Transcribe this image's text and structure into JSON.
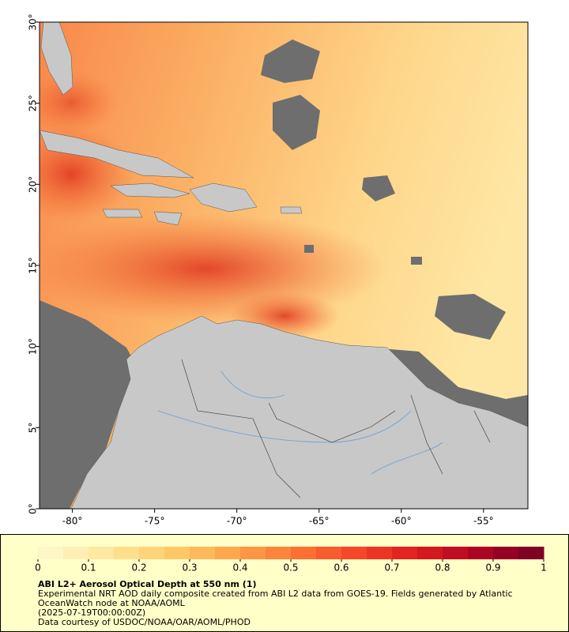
{
  "map": {
    "title": "ABI L2+ Aerosol Optical Depth at 550 nm (1)",
    "description": "Experimental NRT AOD daily composite created from ABI L2 data from GOES-19. Fields generated by Atlantic OceanWatch node at NOAA/AOML",
    "date": "(2025-07-19T00:00:00Z)",
    "credit": "Data courtesy of USDOC/NOAA/OAR/AOML/PHOD",
    "xlim": [
      -82,
      -52.3
    ],
    "ylim": [
      0,
      30
    ],
    "xticks": [
      {
        "value": -80,
        "label": "-80°"
      },
      {
        "value": -75,
        "label": "-75°"
      },
      {
        "value": -70,
        "label": "-70°"
      },
      {
        "value": -65,
        "label": "-65°"
      },
      {
        "value": -60,
        "label": "-60°"
      },
      {
        "value": -55,
        "label": "-55°"
      }
    ],
    "yticks": [
      {
        "value": 0,
        "label": "0°"
      },
      {
        "value": 5,
        "label": "5°"
      },
      {
        "value": 10,
        "label": "10°"
      },
      {
        "value": 15,
        "label": "15°"
      },
      {
        "value": 20,
        "label": "20°"
      },
      {
        "value": 25,
        "label": "25°"
      },
      {
        "value": 30,
        "label": "30°"
      }
    ]
  },
  "colorbar": {
    "lim": [
      0,
      1
    ],
    "ticks": [
      0,
      0.1,
      0.2,
      0.3,
      0.4,
      0.5,
      0.6,
      0.7,
      0.8,
      0.9,
      1
    ],
    "colors": [
      "#fff6c8",
      "#ffefb4",
      "#ffe8a0",
      "#ffdf8c",
      "#fed47a",
      "#fec868",
      "#feb95a",
      "#fea84e",
      "#fd9644",
      "#fd843c",
      "#fc7034",
      "#f95c2e",
      "#f44828",
      "#ec3624",
      "#e32420",
      "#d41820",
      "#c10d22",
      "#ab0424",
      "#960026",
      "#800026"
    ]
  }
}
